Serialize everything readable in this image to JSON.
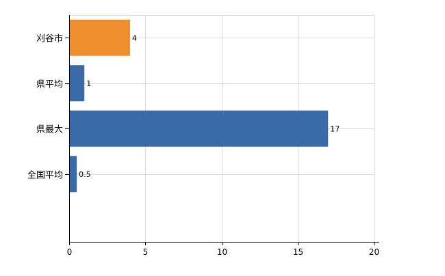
{
  "chart_data": {
    "type": "bar",
    "orientation": "horizontal",
    "categories": [
      "刈谷市",
      "県平均",
      "県最大",
      "全国平均"
    ],
    "values": [
      4,
      1,
      17,
      0.5
    ],
    "value_labels": [
      "4",
      "1",
      "17",
      "0.5"
    ],
    "colors": [
      "#EE8E2E",
      "#3A6BA8",
      "#3A6BA8",
      "#3A6BA8"
    ],
    "xlim": [
      0,
      20
    ],
    "x_ticks": [
      "0",
      "5",
      "10",
      "15",
      "20"
    ],
    "grid": true,
    "legend": "none"
  }
}
